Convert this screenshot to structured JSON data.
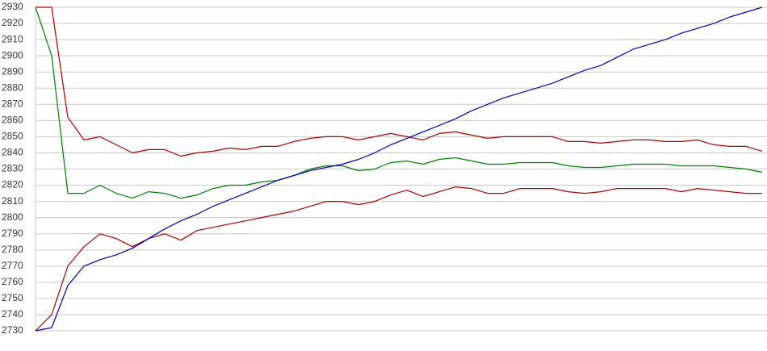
{
  "chart_data": {
    "type": "line",
    "ylim": [
      2730,
      2930
    ],
    "yticks": [
      2730,
      2740,
      2750,
      2760,
      2770,
      2780,
      2790,
      2800,
      2810,
      2820,
      2830,
      2840,
      2850,
      2860,
      2870,
      2880,
      2890,
      2900,
      2910,
      2920,
      2930
    ],
    "grid": true,
    "series": [
      {
        "color": "#b00000",
        "values": [
          2930,
          2930,
          2862,
          2848,
          2850,
          2845,
          2840,
          2842,
          2842,
          2838,
          2840,
          2841,
          2843,
          2842,
          2844,
          2844,
          2847,
          2849,
          2850,
          2850,
          2848,
          2850,
          2852,
          2850,
          2848,
          2852,
          2853,
          2851,
          2849,
          2850,
          2850,
          2850,
          2850,
          2847,
          2847,
          2846,
          2847,
          2848,
          2848,
          2847,
          2847,
          2848,
          2845,
          2844,
          2844,
          2841
        ]
      },
      {
        "color": "#008000",
        "values": [
          2930,
          2900,
          2815,
          2815,
          2820,
          2815,
          2812,
          2816,
          2815,
          2812,
          2814,
          2818,
          2820,
          2820,
          2822,
          2823,
          2826,
          2830,
          2832,
          2832,
          2829,
          2830,
          2834,
          2835,
          2833,
          2836,
          2837,
          2835,
          2833,
          2833,
          2834,
          2834,
          2834,
          2832,
          2831,
          2831,
          2832,
          2833,
          2833,
          2833,
          2832,
          2832,
          2832,
          2831,
          2830,
          2828
        ]
      },
      {
        "color": "#b00000",
        "values": [
          2730,
          2740,
          2770,
          2782,
          2790,
          2787,
          2782,
          2787,
          2790,
          2786,
          2792,
          2794,
          2796,
          2798,
          2800,
          2802,
          2804,
          2807,
          2810,
          2810,
          2808,
          2810,
          2814,
          2817,
          2813,
          2816,
          2819,
          2818,
          2815,
          2815,
          2818,
          2818,
          2818,
          2816,
          2815,
          2816,
          2818,
          2818,
          2818,
          2818,
          2816,
          2818,
          2817,
          2816,
          2815,
          2815
        ]
      },
      {
        "color": "#0000c0",
        "values": [
          2730,
          2732,
          2758,
          2770,
          2774,
          2777,
          2781,
          2787,
          2793,
          2798,
          2802,
          2807,
          2811,
          2815,
          2819,
          2823,
          2826,
          2829,
          2831,
          2833,
          2836,
          2840,
          2845,
          2849,
          2853,
          2857,
          2861,
          2866,
          2870,
          2874,
          2877,
          2880,
          2883,
          2887,
          2891,
          2894,
          2899,
          2904,
          2907,
          2910,
          2914,
          2917,
          2920,
          2924,
          2927,
          2930
        ]
      }
    ]
  }
}
